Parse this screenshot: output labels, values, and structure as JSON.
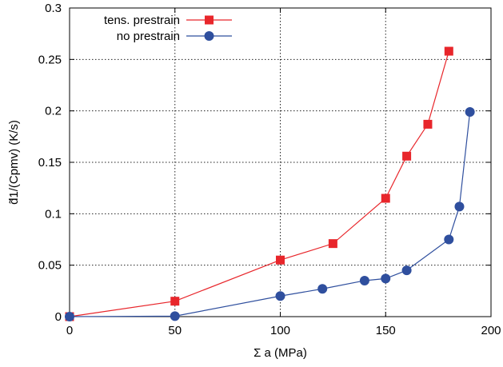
{
  "chart_data": {
    "type": "line",
    "xlabel": "Σ a  (MPa)",
    "ylabel": "d̃1/(Cpmv) (K/s)",
    "xlim": [
      0,
      200
    ],
    "ylim": [
      0,
      0.3
    ],
    "x_ticks": [
      0,
      50,
      100,
      150,
      200
    ],
    "x_tick_labels": [
      "0",
      "50",
      "100",
      "150",
      "200"
    ],
    "y_ticks": [
      0,
      0.05,
      0.1,
      0.15,
      0.2,
      0.25,
      0.3
    ],
    "y_tick_labels": [
      "0",
      "0.05",
      "0.1",
      "0.15",
      "0.2",
      "0.25",
      "0.3"
    ],
    "grid": true,
    "legend_position": "top-left",
    "series": [
      {
        "name": "tens. prestrain",
        "color": "#e8262b",
        "marker": "square",
        "x": [
          0,
          50,
          100,
          125,
          150,
          160,
          170,
          180
        ],
        "y": [
          0,
          0.015,
          0.055,
          0.071,
          0.115,
          0.156,
          0.187,
          0.258
        ]
      },
      {
        "name": "no prestrain",
        "color": "#2f4f9e",
        "marker": "circle",
        "x": [
          0,
          50,
          100,
          120,
          140,
          150,
          160,
          180,
          185,
          190
        ],
        "y": [
          0,
          0.0005,
          0.02,
          0.027,
          0.035,
          0.037,
          0.045,
          0.075,
          0.107,
          0.199
        ]
      }
    ]
  }
}
